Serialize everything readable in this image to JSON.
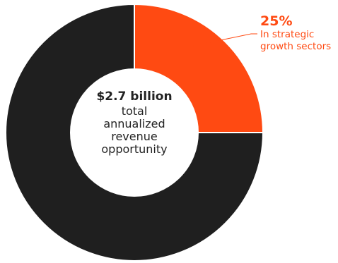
{
  "chart_data": {
    "type": "pie",
    "variant": "donut",
    "categories": [
      "In strategic growth sectors",
      ""
    ],
    "values": [
      25,
      75
    ],
    "colors": [
      "#ff4a12",
      "#1f1f1f"
    ],
    "center_label": {
      "amount": "$2.7 billion",
      "lines": [
        "total",
        "annualized",
        "revenue",
        "opportunity"
      ]
    },
    "annotation": {
      "value_label": "25%",
      "text_lines": [
        "In strategic",
        "growth sectors"
      ]
    }
  }
}
